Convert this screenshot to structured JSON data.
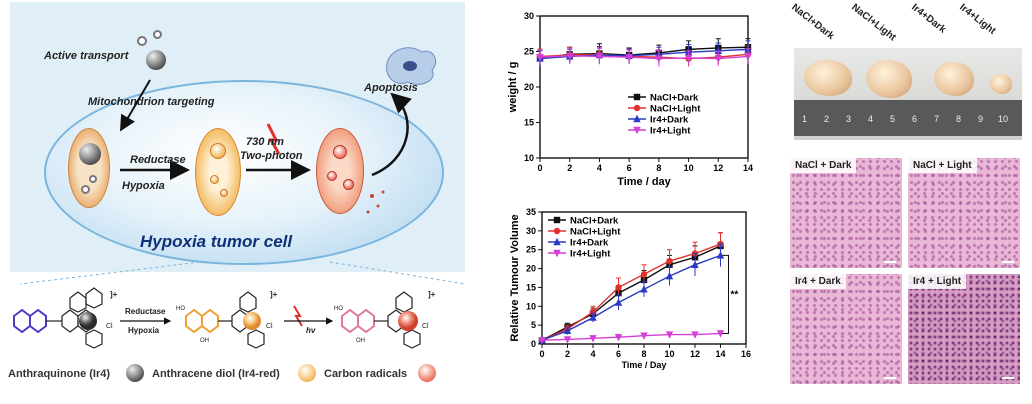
{
  "schematic": {
    "active_transport": "Active transport",
    "mito_targeting": "Mitochondrion targeting",
    "reductase": "Reductase",
    "hypoxia": "Hypoxia",
    "light_wavelength": "730 nm",
    "light_mode": "Two-photon",
    "apoptosis": "Apoptosis",
    "cell_title": "Hypoxia tumor cell",
    "chem_reductase": "Reductase",
    "chem_hypoxia": "Hypoxia",
    "chem_hv": "hν",
    "charge_label": "]+",
    "legend": {
      "anthraquinone": "Anthraquinone (Ir4)",
      "anthracene": "Anthracene diol (Ir4-red)",
      "radicals": "Carbon radicals"
    },
    "colors": {
      "background": "#dfeef7",
      "cell_title": "#10307a",
      "orange": "#f4b85a",
      "red": "#d0402c"
    }
  },
  "chart_data": [
    {
      "type": "line",
      "xlabel": "Time / day",
      "ylabel": "weight / g",
      "xlim": [
        0,
        14
      ],
      "ylim": [
        10,
        30
      ],
      "xticks": [
        0,
        2,
        4,
        6,
        8,
        10,
        12,
        14
      ],
      "yticks": [
        10,
        15,
        20,
        25,
        30
      ],
      "legend_position": "center-right",
      "x": [
        0,
        2,
        4,
        6,
        8,
        10,
        12,
        14
      ],
      "series": [
        {
          "name": "NaCl+Dark",
          "color": "#111111",
          "marker": "square",
          "values": [
            24.1,
            24.6,
            24.7,
            24.5,
            24.8,
            25.3,
            25.5,
            25.6
          ],
          "err": [
            1.2,
            1.0,
            1.4,
            1.0,
            1.1,
            1.2,
            1.3,
            1.2
          ]
        },
        {
          "name": "NaCl+Light",
          "color": "#e0312c",
          "marker": "circle",
          "values": [
            24.3,
            24.5,
            24.6,
            24.3,
            24.2,
            24.0,
            24.2,
            24.6
          ],
          "err": [
            1.0,
            1.1,
            1.0,
            1.0,
            1.0,
            1.1,
            1.0,
            1.2
          ]
        },
        {
          "name": "Ir4+Dark",
          "color": "#2b3ac4",
          "marker": "triangle-up",
          "values": [
            24.0,
            24.3,
            24.5,
            24.4,
            24.6,
            24.9,
            25.1,
            25.3
          ],
          "err": [
            1.1,
            1.0,
            1.2,
            1.0,
            1.0,
            1.1,
            1.1,
            1.2
          ]
        },
        {
          "name": "Ir4+Light",
          "color": "#d43fd6",
          "marker": "triangle-down",
          "values": [
            24.2,
            24.4,
            24.3,
            24.2,
            24.0,
            24.1,
            24.0,
            24.3
          ],
          "err": [
            1.0,
            1.0,
            1.1,
            1.0,
            1.1,
            1.0,
            1.0,
            1.1
          ]
        }
      ]
    },
    {
      "type": "line",
      "xlabel": "Time / Day",
      "ylabel": "Relative Tumour Volume",
      "xlim": [
        0,
        16
      ],
      "ylim": [
        0,
        35
      ],
      "xticks": [
        0,
        2,
        4,
        6,
        8,
        10,
        12,
        14,
        16
      ],
      "yticks": [
        0,
        5,
        10,
        15,
        20,
        25,
        30,
        35
      ],
      "legend_position": "top-left",
      "annotation": "**",
      "x": [
        0,
        2,
        4,
        6,
        8,
        10,
        12,
        14
      ],
      "series": [
        {
          "name": "NaCl+Dark",
          "color": "#111111",
          "marker": "square",
          "values": [
            1,
            4.5,
            8,
            13.5,
            17,
            21,
            23,
            26
          ],
          "err": [
            0.3,
            1.0,
            1.5,
            2.0,
            2.5,
            2.5,
            3.0,
            3.5
          ]
        },
        {
          "name": "NaCl+Light",
          "color": "#e0312c",
          "marker": "circle",
          "values": [
            1,
            4,
            8.5,
            15,
            18.5,
            22,
            24,
            26.5
          ],
          "err": [
            0.3,
            1.0,
            1.5,
            2.5,
            2.5,
            3.0,
            3.0,
            3.0
          ]
        },
        {
          "name": "Ir4+Dark",
          "color": "#2b3ac4",
          "marker": "triangle-up",
          "values": [
            1,
            3.5,
            7,
            11,
            14.5,
            18,
            21,
            23.5
          ],
          "err": [
            0.3,
            1.0,
            1.2,
            2.0,
            2.0,
            2.5,
            3.0,
            3.0
          ]
        },
        {
          "name": "Ir4+Light",
          "color": "#d43fd6",
          "marker": "triangle-down",
          "values": [
            1,
            1.2,
            1.5,
            1.8,
            2.2,
            2.5,
            2.5,
            2.8
          ],
          "err": [
            0.2,
            0.3,
            0.3,
            0.4,
            0.4,
            0.5,
            0.5,
            0.5
          ]
        }
      ]
    }
  ],
  "photos": {
    "tumor_labels": [
      "NaCl+Dark",
      "NaCl+Light",
      "Ir4+Dark",
      "Ir4+Light"
    ],
    "ruler_numbers": [
      "1",
      "2",
      "3",
      "4",
      "5",
      "6",
      "7",
      "8",
      "9",
      "10"
    ],
    "histology": [
      {
        "label": "NaCl + Dark"
      },
      {
        "label": "NaCl + Light"
      },
      {
        "label": "Ir4 + Dark"
      },
      {
        "label": "Ir4 + Light"
      }
    ]
  }
}
